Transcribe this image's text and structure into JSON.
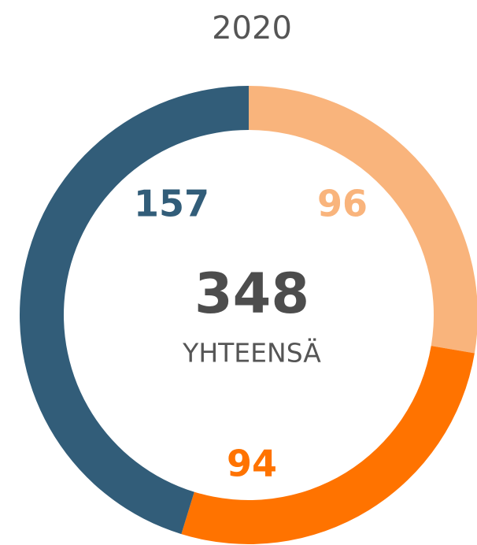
{
  "chart_data": {
    "type": "donut",
    "title": "2020",
    "categories": [
      null,
      null,
      null
    ],
    "values": [
      96,
      94,
      157
    ],
    "colors": [
      "#f9b47c",
      "#ff7300",
      "#325d79"
    ],
    "center_value": 348,
    "center_label": "YHTEENSÄ"
  }
}
